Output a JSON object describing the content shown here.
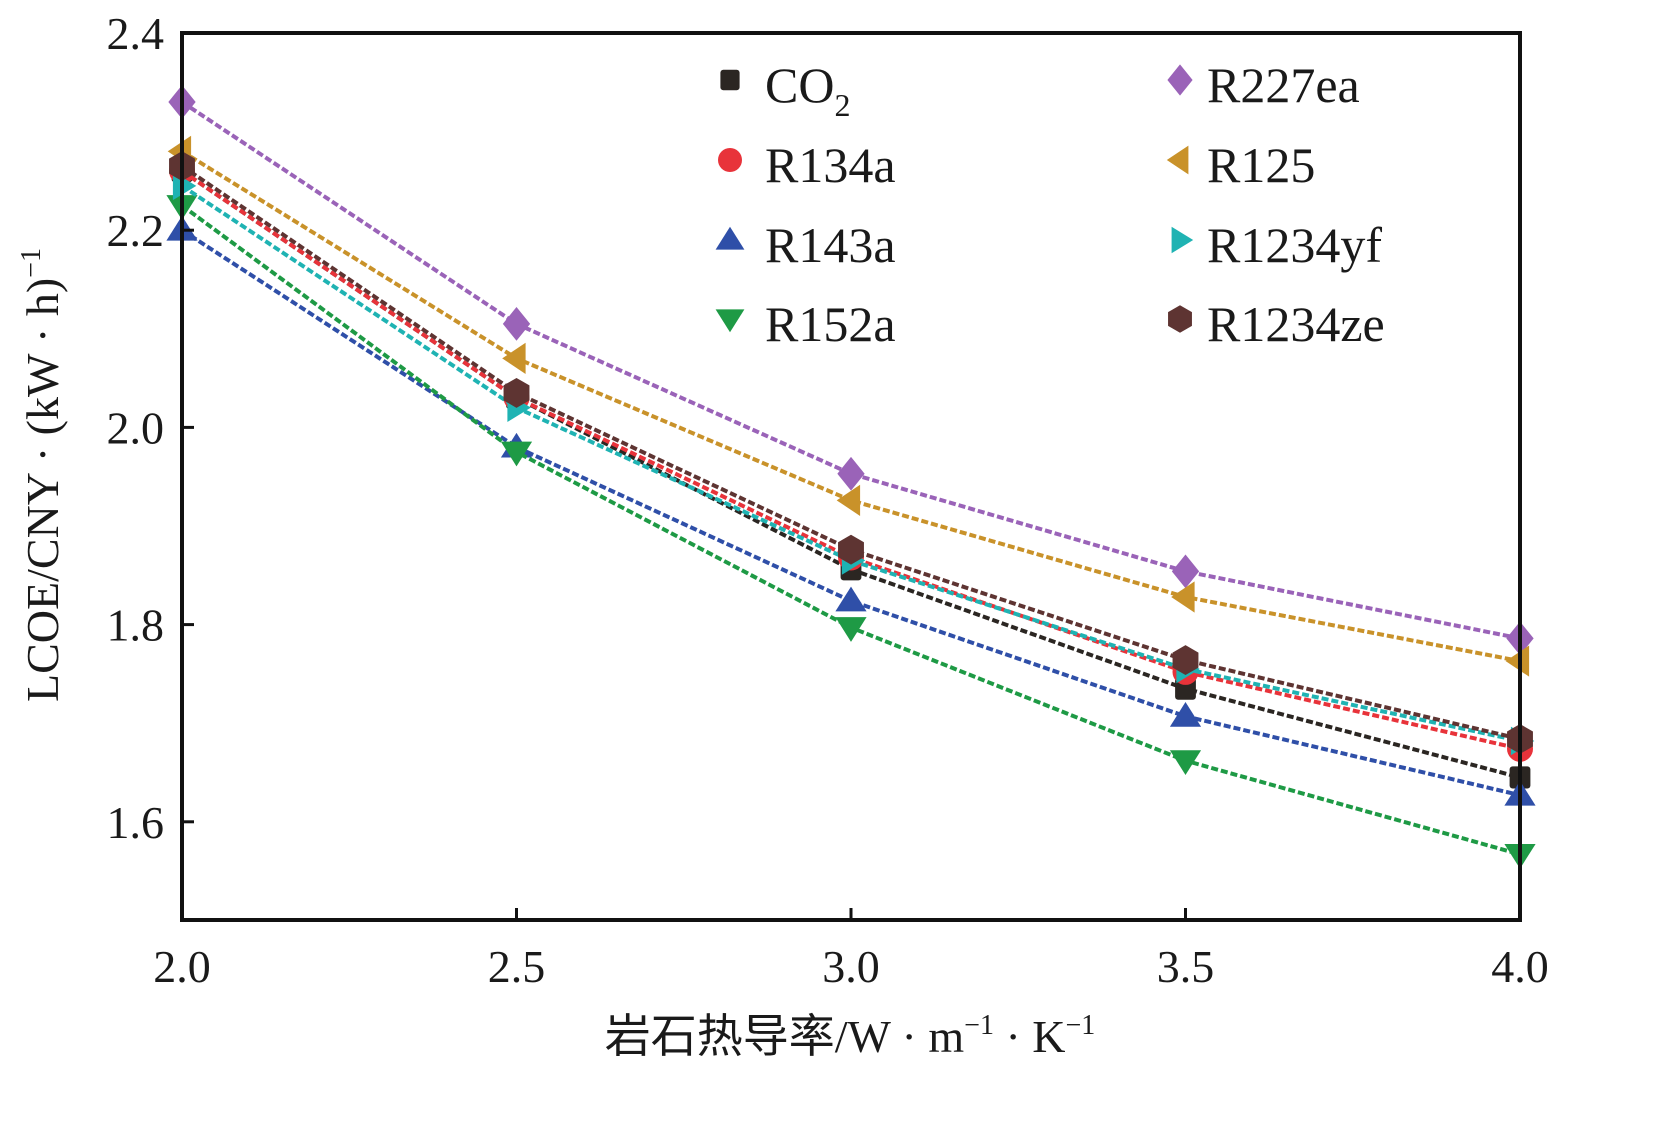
{
  "chart_data": {
    "type": "line",
    "title": "",
    "xlabel": "岩石热导率/W·m⁻¹·K⁻¹",
    "ylabel": "LCOE/CNY·(kW·h)⁻¹",
    "xlabel_parts": {
      "main": "岩石热导率/W · m",
      "sup1": "−1",
      "mid": " · K",
      "sup2": "−1"
    },
    "ylabel_parts": {
      "main": "LCOE/CNY · (kW · h)",
      "sup": "−1"
    },
    "xlim": [
      2.0,
      4.0
    ],
    "ylim": [
      1.5,
      2.4
    ],
    "x_ticks": [
      2.0,
      2.5,
      3.0,
      3.5,
      4.0
    ],
    "x_tick_labels": [
      "2.0",
      "2.5",
      "3.0",
      "3.5",
      "4.0"
    ],
    "y_ticks": [
      1.6,
      1.8,
      2.0,
      2.2,
      2.4
    ],
    "y_tick_labels": [
      "1.6",
      "1.8",
      "2.0",
      "2.2",
      "2.4"
    ],
    "grid": false,
    "legend_position": "top-right",
    "x": [
      2.0,
      2.5,
      3.0,
      3.5,
      4.0
    ],
    "series": [
      {
        "name": "CO2",
        "label_main": "CO",
        "label_sub": "2",
        "marker": "square",
        "color": "#2b2622",
        "values": [
          2.26,
          2.03,
          1.856,
          1.735,
          1.645
        ]
      },
      {
        "name": "R134a",
        "label_main": "R134a",
        "label_sub": "",
        "marker": "circle",
        "color": "#e8333a",
        "values": [
          2.26,
          2.03,
          1.868,
          1.752,
          1.674
        ]
      },
      {
        "name": "R143a",
        "label_main": "R143a",
        "label_sub": "",
        "marker": "triangle-up",
        "color": "#2f4fa8",
        "values": [
          2.2,
          1.98,
          1.824,
          1.707,
          1.627
        ]
      },
      {
        "name": "R152a",
        "label_main": "R152a",
        "label_sub": "",
        "marker": "triangle-down",
        "color": "#1e9a45",
        "values": [
          2.225,
          1.975,
          1.797,
          1.662,
          1.567
        ]
      },
      {
        "name": "R227ea",
        "label_main": "R227ea",
        "label_sub": "",
        "marker": "diamond",
        "color": "#9a63b8",
        "values": [
          2.33,
          2.105,
          1.953,
          1.854,
          1.786
        ]
      },
      {
        "name": "R125",
        "label_main": "R125",
        "label_sub": "",
        "marker": "triangle-left",
        "color": "#c9922a",
        "values": [
          2.28,
          2.07,
          1.926,
          1.828,
          1.763
        ]
      },
      {
        "name": "R1234yf",
        "label_main": "R1234yf",
        "label_sub": "",
        "marker": "triangle-right",
        "color": "#1fb3b3",
        "values": [
          2.245,
          2.02,
          1.865,
          1.755,
          1.682
        ]
      },
      {
        "name": "R1234ze",
        "label_main": "R1234ze",
        "label_sub": "",
        "marker": "hexagon",
        "color": "#5e3432",
        "values": [
          2.265,
          2.035,
          1.876,
          1.764,
          1.684
        ]
      }
    ]
  }
}
